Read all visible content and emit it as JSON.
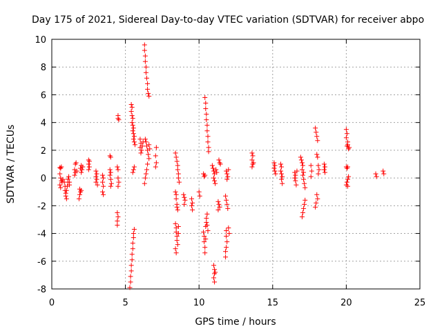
{
  "chart_data": {
    "type": "scatter",
    "title": "Day 175 of 2021, Sidereal Day-to-day VTEC variation (SDTVAR) for receiver abpo",
    "xlabel": "GPS time / hours",
    "ylabel": "SDTVAR / TECUs",
    "xlim": [
      0,
      25
    ],
    "ylim": [
      -8,
      10
    ],
    "xticks": [
      "0",
      "5",
      "10",
      "15",
      "20",
      "25"
    ],
    "yticks": [
      "-8",
      "-6",
      "-4",
      "-2",
      "0",
      "2",
      "4",
      "6",
      "8",
      "10"
    ],
    "grid": true,
    "marker": "plus",
    "color": "#ff0000",
    "series": [
      {
        "name": "SDTVAR",
        "points": [
          [
            0.55,
            0.75
          ],
          [
            0.6,
            0.7
          ],
          [
            0.65,
            0.8
          ],
          [
            0.55,
            0.3
          ],
          [
            0.6,
            0.0
          ],
          [
            0.65,
            -0.2
          ],
          [
            0.55,
            -0.5
          ],
          [
            0.6,
            -0.7
          ],
          [
            0.7,
            -0.3
          ],
          [
            0.75,
            -0.1
          ],
          [
            0.85,
            -0.3
          ],
          [
            0.9,
            -0.6
          ],
          [
            0.9,
            -0.9
          ],
          [
            0.95,
            -1.1
          ],
          [
            0.95,
            -1.3
          ],
          [
            1.0,
            -1.5
          ],
          [
            1.0,
            -0.9
          ],
          [
            1.05,
            -0.6
          ],
          [
            1.1,
            -0.3
          ],
          [
            1.1,
            -0.1
          ],
          [
            1.15,
            0.1
          ],
          [
            1.2,
            -0.3
          ],
          [
            1.2,
            -0.5
          ],
          [
            1.6,
            1.0
          ],
          [
            1.65,
            1.1
          ],
          [
            1.55,
            0.6
          ],
          [
            1.6,
            0.4
          ],
          [
            1.55,
            0.2
          ],
          [
            1.7,
            0.5
          ],
          [
            1.95,
            0.7
          ],
          [
            2.0,
            0.9
          ],
          [
            2.05,
            0.6
          ],
          [
            2.0,
            0.4
          ],
          [
            2.1,
            0.8
          ],
          [
            1.9,
            -0.8
          ],
          [
            1.95,
            -1.0
          ],
          [
            1.9,
            -1.2
          ],
          [
            1.85,
            -1.5
          ],
          [
            2.0,
            -0.9
          ],
          [
            2.5,
            1.3
          ],
          [
            2.55,
            1.2
          ],
          [
            2.5,
            1.0
          ],
          [
            2.55,
            0.8
          ],
          [
            2.5,
            0.6
          ],
          [
            3.0,
            0.5
          ],
          [
            3.05,
            0.3
          ],
          [
            3.0,
            0.1
          ],
          [
            3.05,
            -0.1
          ],
          [
            3.0,
            -0.3
          ],
          [
            3.1,
            -0.5
          ],
          [
            3.45,
            0.2
          ],
          [
            3.5,
            0.0
          ],
          [
            3.45,
            -0.3
          ],
          [
            3.5,
            -0.6
          ],
          [
            3.45,
            -1.0
          ],
          [
            3.5,
            -1.2
          ],
          [
            3.95,
            1.6
          ],
          [
            4.0,
            1.5
          ],
          [
            3.95,
            0.6
          ],
          [
            4.0,
            0.4
          ],
          [
            3.95,
            0.2
          ],
          [
            4.0,
            -0.1
          ],
          [
            4.05,
            -0.4
          ],
          [
            4.0,
            -0.6
          ],
          [
            4.5,
            4.5
          ],
          [
            4.5,
            4.3
          ],
          [
            4.55,
            4.2
          ],
          [
            4.45,
            0.8
          ],
          [
            4.5,
            0.6
          ],
          [
            4.5,
            0.0
          ],
          [
            4.55,
            -0.3
          ],
          [
            4.5,
            -0.6
          ],
          [
            4.45,
            -2.5
          ],
          [
            4.5,
            -2.8
          ],
          [
            4.45,
            -3.1
          ],
          [
            4.45,
            -3.4
          ],
          [
            5.4,
            5.3
          ],
          [
            5.45,
            5.1
          ],
          [
            5.4,
            4.8
          ],
          [
            5.45,
            4.5
          ],
          [
            5.5,
            4.3
          ],
          [
            5.45,
            4.0
          ],
          [
            5.5,
            3.8
          ],
          [
            5.55,
            3.6
          ],
          [
            5.5,
            3.4
          ],
          [
            5.55,
            3.2
          ],
          [
            5.6,
            3.0
          ],
          [
            5.55,
            2.8
          ],
          [
            5.6,
            2.6
          ],
          [
            5.65,
            2.4
          ],
          [
            5.5,
            0.4
          ],
          [
            5.55,
            0.6
          ],
          [
            5.6,
            0.8
          ],
          [
            5.3,
            -7.9
          ],
          [
            5.35,
            -7.5
          ],
          [
            5.35,
            -7.1
          ],
          [
            5.4,
            -6.7
          ],
          [
            5.4,
            -6.3
          ],
          [
            5.45,
            -5.9
          ],
          [
            5.45,
            -5.5
          ],
          [
            5.5,
            -5.1
          ],
          [
            5.5,
            -4.7
          ],
          [
            5.55,
            -4.3
          ],
          [
            5.55,
            -4.0
          ],
          [
            5.6,
            -3.7
          ],
          [
            6.0,
            2.8
          ],
          [
            6.05,
            2.5
          ],
          [
            6.0,
            2.2
          ],
          [
            6.1,
            2.0
          ],
          [
            6.05,
            1.8
          ],
          [
            6.15,
            2.3
          ],
          [
            6.2,
            2.6
          ],
          [
            6.3,
            9.6
          ],
          [
            6.3,
            9.2
          ],
          [
            6.35,
            8.8
          ],
          [
            6.35,
            8.4
          ],
          [
            6.4,
            8.0
          ],
          [
            6.4,
            7.6
          ],
          [
            6.45,
            7.2
          ],
          [
            6.5,
            6.8
          ],
          [
            6.5,
            6.4
          ],
          [
            6.55,
            6.1
          ],
          [
            6.6,
            5.9
          ],
          [
            6.35,
            2.8
          ],
          [
            6.4,
            2.6
          ],
          [
            6.45,
            2.3
          ],
          [
            6.5,
            2.0
          ],
          [
            6.55,
            1.7
          ],
          [
            6.6,
            1.4
          ],
          [
            6.5,
            1.0
          ],
          [
            6.45,
            0.6
          ],
          [
            6.4,
            0.3
          ],
          [
            6.35,
            0.0
          ],
          [
            6.3,
            -0.4
          ],
          [
            6.6,
            2.4
          ],
          [
            6.65,
            2.1
          ],
          [
            7.1,
            2.2
          ],
          [
            7.05,
            1.6
          ],
          [
            7.1,
            1.1
          ],
          [
            7.05,
            0.8
          ],
          [
            8.4,
            1.8
          ],
          [
            8.45,
            1.5
          ],
          [
            8.5,
            1.2
          ],
          [
            8.55,
            0.9
          ],
          [
            8.55,
            0.6
          ],
          [
            8.6,
            0.3
          ],
          [
            8.6,
            0.0
          ],
          [
            8.65,
            -0.3
          ],
          [
            8.4,
            -1.0
          ],
          [
            8.45,
            -1.2
          ],
          [
            8.45,
            -1.5
          ],
          [
            8.5,
            -1.9
          ],
          [
            8.5,
            -2.1
          ],
          [
            8.55,
            -2.3
          ],
          [
            8.4,
            -3.3
          ],
          [
            8.45,
            -3.6
          ],
          [
            8.45,
            -3.9
          ],
          [
            8.5,
            -4.2
          ],
          [
            8.5,
            -4.5
          ],
          [
            8.55,
            -4.8
          ],
          [
            8.4,
            -5.1
          ],
          [
            8.45,
            -5.4
          ],
          [
            8.6,
            -3.5
          ],
          [
            8.6,
            -4.0
          ],
          [
            8.95,
            -1.2
          ],
          [
            9.0,
            -1.4
          ],
          [
            9.05,
            -1.6
          ],
          [
            9.0,
            -1.9
          ],
          [
            9.5,
            -1.5
          ],
          [
            9.55,
            -1.8
          ],
          [
            9.5,
            -2.0
          ],
          [
            9.55,
            -2.3
          ],
          [
            10.0,
            -1.0
          ],
          [
            10.05,
            -1.3
          ],
          [
            10.4,
            5.8
          ],
          [
            10.45,
            5.4
          ],
          [
            10.45,
            5.0
          ],
          [
            10.5,
            4.6
          ],
          [
            10.5,
            4.2
          ],
          [
            10.55,
            3.8
          ],
          [
            10.55,
            3.4
          ],
          [
            10.6,
            3.0
          ],
          [
            10.6,
            2.6
          ],
          [
            10.65,
            2.2
          ],
          [
            10.65,
            1.9
          ],
          [
            10.3,
            0.3
          ],
          [
            10.35,
            0.1
          ],
          [
            10.4,
            0.2
          ],
          [
            10.3,
            -3.9
          ],
          [
            10.35,
            -4.2
          ],
          [
            10.35,
            -4.6
          ],
          [
            10.4,
            -5.0
          ],
          [
            10.4,
            -5.4
          ],
          [
            10.45,
            -3.5
          ],
          [
            10.5,
            -3.2
          ],
          [
            10.5,
            -2.9
          ],
          [
            10.55,
            -2.6
          ],
          [
            10.55,
            -3.4
          ],
          [
            10.6,
            -3.8
          ],
          [
            10.45,
            -4.4
          ],
          [
            10.9,
            0.9
          ],
          [
            10.95,
            0.7
          ],
          [
            11.0,
            0.5
          ],
          [
            11.05,
            0.3
          ],
          [
            11.0,
            0.0
          ],
          [
            11.05,
            -0.2
          ],
          [
            11.1,
            -0.4
          ],
          [
            11.15,
            0.6
          ],
          [
            11.2,
            0.4
          ],
          [
            11.0,
            -6.3
          ],
          [
            11.05,
            -6.6
          ],
          [
            11.05,
            -6.9
          ],
          [
            11.0,
            -7.2
          ],
          [
            11.05,
            -7.5
          ],
          [
            11.1,
            -6.8
          ],
          [
            11.35,
            1.3
          ],
          [
            11.4,
            1.1
          ],
          [
            11.45,
            1.0
          ],
          [
            11.3,
            -1.7
          ],
          [
            11.35,
            -1.9
          ],
          [
            11.4,
            -2.1
          ],
          [
            11.3,
            -2.3
          ],
          [
            11.85,
            0.5
          ],
          [
            11.9,
            0.3
          ],
          [
            11.95,
            0.1
          ],
          [
            11.9,
            -0.1
          ],
          [
            12.0,
            0.6
          ],
          [
            11.8,
            -1.3
          ],
          [
            11.85,
            -1.6
          ],
          [
            11.9,
            -1.9
          ],
          [
            11.95,
            -2.2
          ],
          [
            11.85,
            -3.8
          ],
          [
            11.85,
            -4.2
          ],
          [
            11.9,
            -4.6
          ],
          [
            11.85,
            -5.0
          ],
          [
            11.8,
            -5.3
          ],
          [
            11.8,
            -5.7
          ],
          [
            12.0,
            -3.6
          ],
          [
            12.05,
            -4.0
          ],
          [
            13.6,
            1.8
          ],
          [
            13.65,
            1.6
          ],
          [
            13.6,
            1.3
          ],
          [
            13.65,
            1.0
          ],
          [
            13.6,
            0.8
          ],
          [
            13.7,
            1.1
          ],
          [
            15.1,
            1.1
          ],
          [
            15.15,
            0.9
          ],
          [
            15.1,
            0.7
          ],
          [
            15.15,
            0.5
          ],
          [
            15.2,
            0.3
          ],
          [
            15.55,
            1.0
          ],
          [
            15.6,
            0.8
          ],
          [
            15.55,
            0.5
          ],
          [
            15.6,
            0.3
          ],
          [
            15.65,
            0.1
          ],
          [
            15.6,
            -0.1
          ],
          [
            15.65,
            -0.4
          ],
          [
            16.5,
            0.4
          ],
          [
            16.55,
            0.2
          ],
          [
            16.5,
            0.0
          ],
          [
            16.55,
            -0.2
          ],
          [
            16.6,
            -0.5
          ],
          [
            16.65,
            0.5
          ],
          [
            16.9,
            1.5
          ],
          [
            16.95,
            1.3
          ],
          [
            17.0,
            1.1
          ],
          [
            17.05,
            0.9
          ],
          [
            17.0,
            0.6
          ],
          [
            17.1,
            0.4
          ],
          [
            17.05,
            0.2
          ],
          [
            17.1,
            -0.1
          ],
          [
            17.15,
            -0.4
          ],
          [
            17.2,
            -0.7
          ],
          [
            17.2,
            -1.6
          ],
          [
            17.15,
            -1.9
          ],
          [
            17.1,
            -2.2
          ],
          [
            17.05,
            -2.5
          ],
          [
            17.0,
            -2.8
          ],
          [
            17.6,
            0.9
          ],
          [
            17.65,
            0.5
          ],
          [
            17.6,
            0.1
          ],
          [
            17.9,
            3.6
          ],
          [
            17.95,
            3.3
          ],
          [
            18.0,
            3.0
          ],
          [
            18.05,
            2.7
          ],
          [
            18.0,
            1.7
          ],
          [
            18.05,
            1.5
          ],
          [
            18.1,
            0.9
          ],
          [
            18.15,
            0.6
          ],
          [
            18.1,
            0.3
          ],
          [
            18.0,
            -1.2
          ],
          [
            18.05,
            -1.5
          ],
          [
            17.95,
            -1.8
          ],
          [
            17.9,
            -2.1
          ],
          [
            18.5,
            1.0
          ],
          [
            18.55,
            0.8
          ],
          [
            18.5,
            0.6
          ],
          [
            18.55,
            0.4
          ],
          [
            20.0,
            3.5
          ],
          [
            20.05,
            3.2
          ],
          [
            20.0,
            2.9
          ],
          [
            20.1,
            2.6
          ],
          [
            20.05,
            2.3
          ],
          [
            20.15,
            2.1
          ],
          [
            20.1,
            2.4
          ],
          [
            20.2,
            2.2
          ],
          [
            20.0,
            0.8
          ],
          [
            20.05,
            0.7
          ],
          [
            20.1,
            0.8
          ],
          [
            20.0,
            -0.5
          ],
          [
            20.05,
            -0.3
          ],
          [
            20.1,
            -0.1
          ],
          [
            20.15,
            0.1
          ],
          [
            20.1,
            -0.6
          ],
          [
            22.0,
            0.3
          ],
          [
            22.05,
            0.1
          ],
          [
            22.5,
            0.5
          ],
          [
            22.55,
            0.3
          ]
        ]
      }
    ]
  }
}
